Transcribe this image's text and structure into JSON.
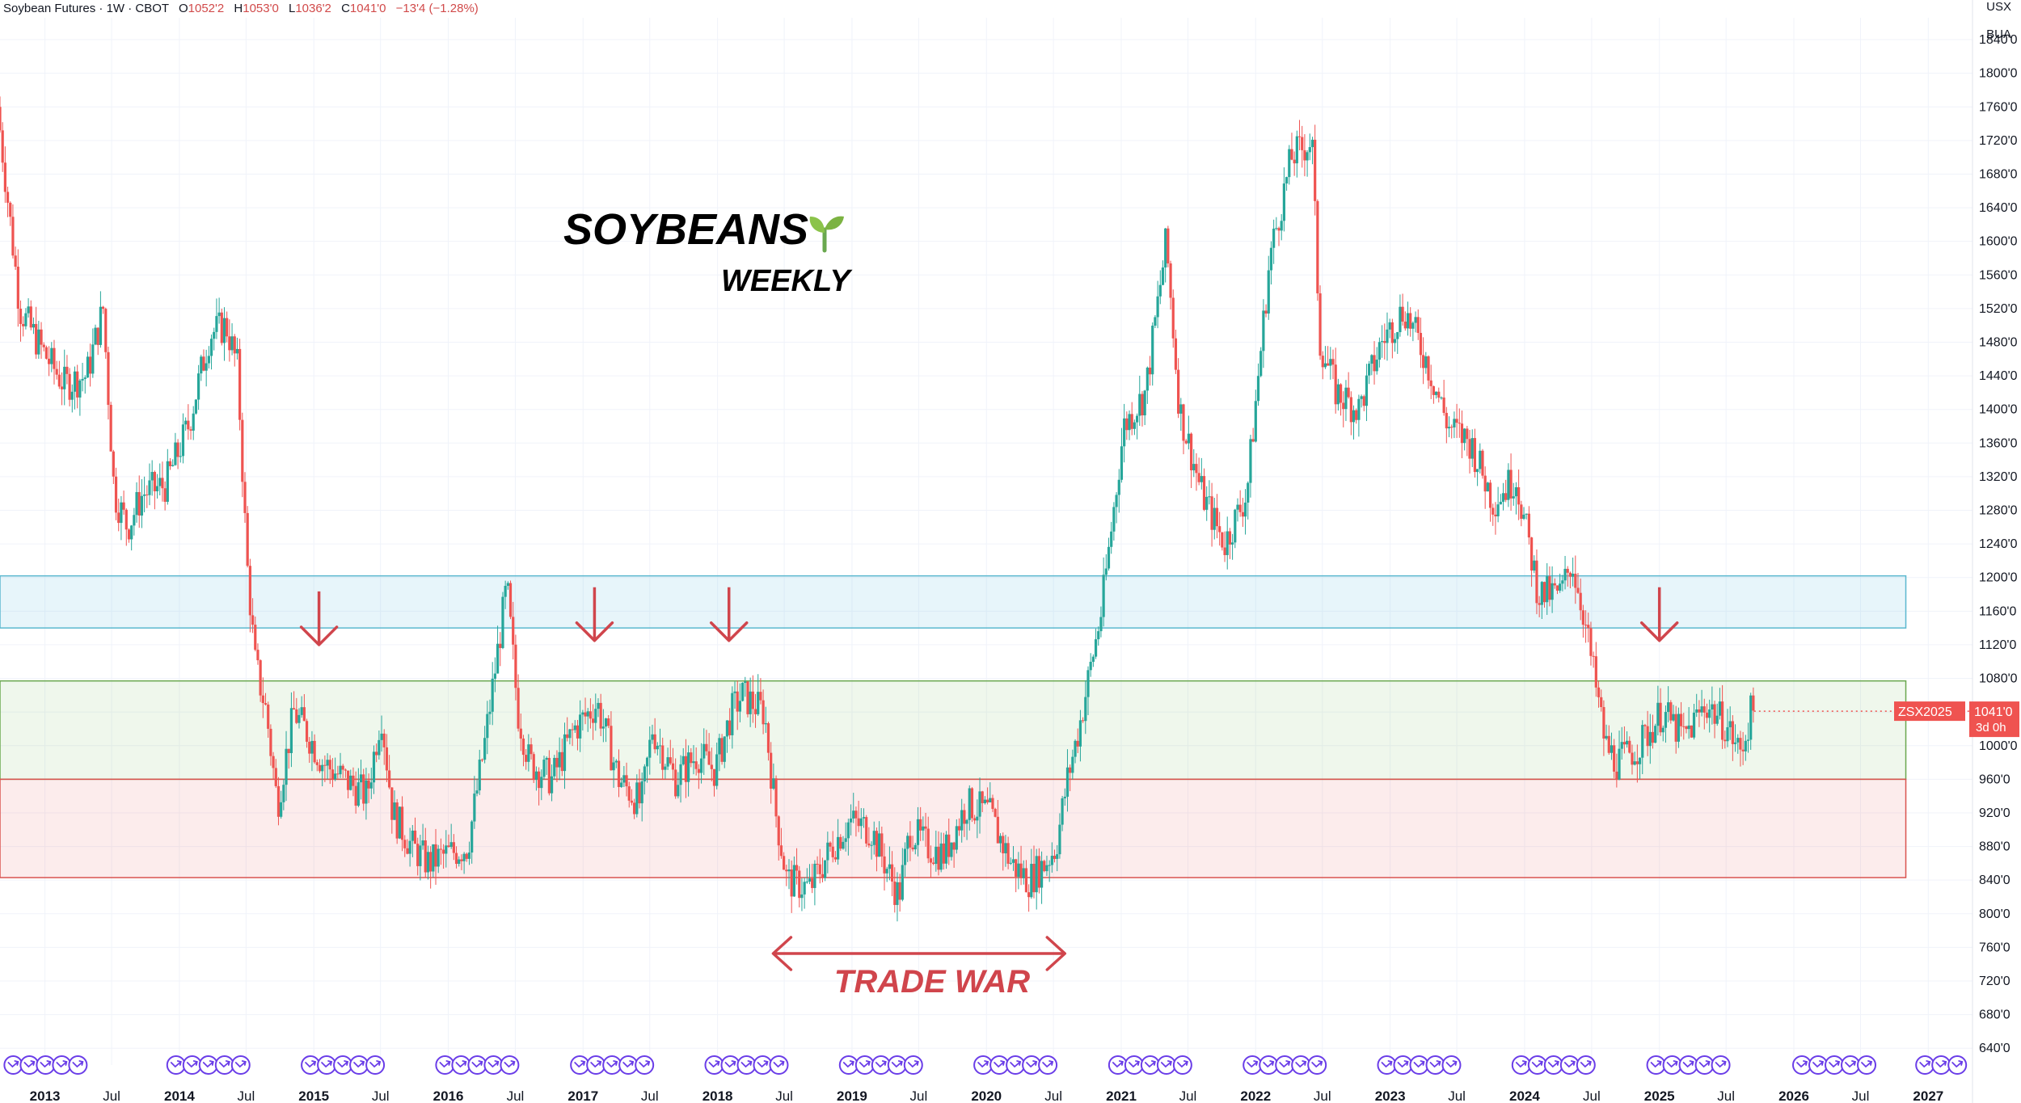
{
  "header": {
    "symbol": "Soybean Futures · 1W · CBOT",
    "open_label": "O",
    "open": "1052'2",
    "high_label": "H",
    "high": "1053'0",
    "low_label": "L",
    "low": "1036'2",
    "close_label": "C",
    "close": "1041'0",
    "change": "−13'4 (−1.28%)"
  },
  "price_axis": {
    "unit": "USX",
    "unit2": "BUA",
    "ticks": [
      "1840'0",
      "1800'0",
      "1760'0",
      "1720'0",
      "1680'0",
      "1640'0",
      "1600'0",
      "1560'0",
      "1520'0",
      "1480'0",
      "1440'0",
      "1400'0",
      "1360'0",
      "1320'0",
      "1280'0",
      "1240'0",
      "1200'0",
      "1160'0",
      "1120'0",
      "1080'0",
      "1040'0",
      "1000'0",
      "960'0",
      "920'0",
      "880'0",
      "840'0",
      "800'0",
      "760'0",
      "720'0",
      "680'0",
      "640'0"
    ]
  },
  "current_price": {
    "ticker": "ZSX2025",
    "price": "1041'0",
    "countdown": "3d 0h",
    "value": 1041
  },
  "annotations": {
    "title": "SOYBEANS",
    "subtitle": "WEEKLY",
    "trade_war_label": "TRADE WAR",
    "sprout_icon": "sprout-icon"
  },
  "colors": {
    "up": "#26a69a",
    "down": "#ef5350",
    "annotation_red": "#d0454c",
    "blue_zone": "#5bb8cf",
    "green_zone": "#6aa84f",
    "red_zone": "#d9534f",
    "event_icon": "#6a3de8"
  },
  "chart_data": {
    "type": "candlestick",
    "title": "SOYBEANS WEEKLY",
    "symbol": "Soybean Futures · 1W · CBOT",
    "y_unit": "USX / BUA",
    "ylim": [
      620,
      1866
    ],
    "x_range": [
      "2012-09",
      "2027-05"
    ],
    "x_ticks": [
      "2013",
      "Jul",
      "2014",
      "Jul",
      "2015",
      "Jul",
      "2016",
      "Jul",
      "2017",
      "Jul",
      "2018",
      "Jul",
      "2019",
      "Jul",
      "2020",
      "Jul",
      "2021",
      "Jul",
      "2022",
      "Jul",
      "2023",
      "Jul",
      "2024",
      "Jul",
      "2025",
      "Jul",
      "2026",
      "Jul",
      "2027"
    ],
    "grid": true,
    "zones": [
      {
        "color": "blue",
        "y_range": [
          1140,
          1202
        ],
        "x_range": [
          "2012-09",
          "2026-11"
        ]
      },
      {
        "color": "green",
        "y_range": [
          960,
          1077
        ],
        "x_range": [
          "2012-09",
          "2026-11"
        ]
      },
      {
        "color": "red",
        "y_range": [
          843,
          960
        ],
        "x_range": [
          "2012-09",
          "2026-11"
        ]
      }
    ],
    "price_path": [
      [
        "2012-09-01",
        1760
      ],
      [
        "2012-11-01",
        1520
      ],
      [
        "2013-01-01",
        1470
      ],
      [
        "2013-03-01",
        1430
      ],
      [
        "2013-05-01",
        1440
      ],
      [
        "2013-06-15",
        1520
      ],
      [
        "2013-07-15",
        1300
      ],
      [
        "2013-08-20",
        1260
      ],
      [
        "2013-10-01",
        1300
      ],
      [
        "2013-12-01",
        1310
      ],
      [
        "2014-02-01",
        1380
      ],
      [
        "2014-04-01",
        1490
      ],
      [
        "2014-05-15",
        1500
      ],
      [
        "2014-06-15",
        1450
      ],
      [
        "2014-07-10",
        1220
      ],
      [
        "2014-08-01",
        1100
      ],
      [
        "2014-09-01",
        1040
      ],
      [
        "2014-10-01",
        930
      ],
      [
        "2014-11-15",
        1040
      ],
      [
        "2014-12-15",
        1020
      ],
      [
        "2015-02-01",
        980
      ],
      [
        "2015-04-01",
        960
      ],
      [
        "2015-06-01",
        940
      ],
      [
        "2015-07-10",
        1040
      ],
      [
        "2015-08-10",
        920
      ],
      [
        "2015-10-01",
        880
      ],
      [
        "2015-11-15",
        860
      ],
      [
        "2016-01-01",
        870
      ],
      [
        "2016-03-01",
        880
      ],
      [
        "2016-04-15",
        1000
      ],
      [
        "2016-06-15",
        1190
      ],
      [
        "2016-07-15",
        1040
      ],
      [
        "2016-08-15",
        980
      ],
      [
        "2016-10-15",
        960
      ],
      [
        "2016-12-15",
        1020
      ],
      [
        "2017-02-15",
        1050
      ],
      [
        "2017-04-15",
        960
      ],
      [
        "2017-06-15",
        930
      ],
      [
        "2017-07-15",
        1020
      ],
      [
        "2017-09-15",
        960
      ],
      [
        "2017-11-15",
        990
      ],
      [
        "2018-01-01",
        970
      ],
      [
        "2018-02-15",
        1040
      ],
      [
        "2018-03-15",
        1060
      ],
      [
        "2018-05-15",
        1040
      ],
      [
        "2018-06-15",
        920
      ],
      [
        "2018-07-15",
        840
      ],
      [
        "2018-09-15",
        830
      ],
      [
        "2018-11-15",
        880
      ],
      [
        "2019-01-01",
        910
      ],
      [
        "2019-03-01",
        900
      ],
      [
        "2019-05-15",
        820
      ],
      [
        "2019-06-15",
        900
      ],
      [
        "2019-08-01",
        880
      ],
      [
        "2019-09-15",
        870
      ],
      [
        "2019-11-15",
        930
      ],
      [
        "2020-01-15",
        920
      ],
      [
        "2020-03-15",
        860
      ],
      [
        "2020-05-01",
        840
      ],
      [
        "2020-06-15",
        860
      ],
      [
        "2020-07-15",
        880
      ],
      [
        "2020-08-15",
        960
      ],
      [
        "2020-09-15",
        1020
      ],
      [
        "2020-11-15",
        1160
      ],
      [
        "2021-01-15",
        1380
      ],
      [
        "2021-03-15",
        1420
      ],
      [
        "2021-05-10",
        1600
      ],
      [
        "2021-06-15",
        1400
      ],
      [
        "2021-08-15",
        1300
      ],
      [
        "2021-10-15",
        1240
      ],
      [
        "2021-12-15",
        1300
      ],
      [
        "2022-02-15",
        1580
      ],
      [
        "2022-04-15",
        1700
      ],
      [
        "2022-06-10",
        1720
      ],
      [
        "2022-07-01",
        1480
      ],
      [
        "2022-08-15",
        1420
      ],
      [
        "2022-10-15",
        1400
      ],
      [
        "2022-12-15",
        1480
      ],
      [
        "2023-02-15",
        1520
      ],
      [
        "2023-04-15",
        1460
      ],
      [
        "2023-06-15",
        1380
      ],
      [
        "2023-08-15",
        1360
      ],
      [
        "2023-10-15",
        1290
      ],
      [
        "2023-12-15",
        1320
      ],
      [
        "2024-02-15",
        1180
      ],
      [
        "2024-04-15",
        1180
      ],
      [
        "2024-05-15",
        1220
      ],
      [
        "2024-06-15",
        1160
      ],
      [
        "2024-08-15",
        1000
      ],
      [
        "2024-09-15",
        980
      ],
      [
        "2024-11-15",
        1000
      ],
      [
        "2025-01-15",
        1040
      ],
      [
        "2025-03-15",
        1010
      ],
      [
        "2025-05-15",
        1050
      ],
      [
        "2025-07-15",
        1020
      ],
      [
        "2025-08-15",
        990
      ],
      [
        "2025-09-15",
        1041
      ]
    ],
    "markers": [
      {
        "type": "down-arrow",
        "date": "2015-01-15",
        "price": 1120
      },
      {
        "type": "down-arrow",
        "date": "2017-02-01",
        "price": 1125
      },
      {
        "type": "down-arrow",
        "date": "2018-02-01",
        "price": 1125
      },
      {
        "type": "down-arrow",
        "date": "2025-01-01",
        "price": 1125
      }
    ],
    "trade_war_span": [
      "2018-06-01",
      "2020-08-01"
    ],
    "last_price": 1041,
    "event_groups": [
      [
        "2012-09-15",
        5
      ],
      [
        "2013-12-01",
        5
      ],
      [
        "2014-12-01",
        5
      ],
      [
        "2015-12-01",
        5
      ],
      [
        "2016-12-01",
        5
      ],
      [
        "2017-12-01",
        5
      ],
      [
        "2018-12-01",
        5
      ],
      [
        "2019-12-01",
        5
      ],
      [
        "2020-12-01",
        5
      ],
      [
        "2021-12-01",
        5
      ],
      [
        "2022-12-01",
        5
      ],
      [
        "2023-12-01",
        5
      ],
      [
        "2024-12-01",
        5
      ],
      [
        "2026-01-01",
        5
      ],
      [
        "2026-12-01",
        3
      ]
    ]
  }
}
